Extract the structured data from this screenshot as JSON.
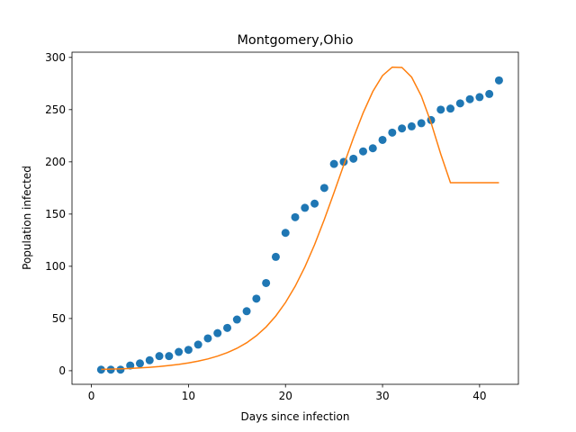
{
  "chart_data": {
    "type": "scatter",
    "title": "Montgomery,Ohio",
    "xlabel": "Days since infection",
    "ylabel": "Population infected",
    "xlim": [
      -2,
      44
    ],
    "ylim": [
      -13,
      305
    ],
    "xticks": [
      0,
      10,
      20,
      30,
      40
    ],
    "yticks": [
      0,
      50,
      100,
      150,
      200,
      250,
      300
    ],
    "grid": false,
    "series": [
      {
        "kind": "points",
        "color": "#1f77b4",
        "x": [
          1,
          2,
          3,
          4,
          5,
          6,
          7,
          8,
          9,
          10,
          11,
          12,
          13,
          14,
          15,
          16,
          17,
          18,
          19,
          20,
          21,
          22,
          23,
          24,
          25,
          26,
          27,
          28,
          29,
          30,
          31,
          32,
          33,
          34,
          35,
          36,
          37,
          38,
          39,
          40,
          41,
          42
        ],
        "y": [
          1,
          1,
          1,
          5,
          7,
          10,
          14,
          14,
          18,
          20,
          25,
          31,
          36,
          41,
          49,
          57,
          69,
          84,
          109,
          132,
          147,
          156,
          160,
          175,
          198,
          200,
          203,
          210,
          213,
          221,
          228,
          232,
          234,
          237,
          240,
          250,
          251,
          256,
          260,
          262,
          265,
          278
        ]
      },
      {
        "kind": "line",
        "color": "#ff7f0e",
        "x": [
          1,
          2,
          3,
          4,
          5,
          6,
          7,
          8,
          9,
          10,
          11,
          12,
          13,
          14,
          15,
          16,
          17,
          18,
          19,
          20,
          21,
          22,
          23,
          24,
          25,
          26,
          27,
          28,
          29,
          30,
          31,
          32,
          33,
          34,
          35,
          36,
          37,
          38,
          39,
          40,
          41,
          42
        ],
        "y": [
          1.3,
          1.5,
          1.8,
          2.2,
          2.7,
          3.3,
          4.0,
          5.0,
          6.1,
          7.5,
          9.2,
          11.3,
          14.0,
          17.3,
          21.5,
          26.8,
          33.5,
          41.9,
          52.4,
          65.3,
          80.9,
          99.4,
          120.8,
          144.8,
          170.6,
          197.0,
          222.9,
          246.9,
          267.4,
          282.6,
          290.7,
          290.4,
          281.1,
          263.0,
          237.5,
          207.4,
          180.0,
          180.0,
          180.0,
          180.0,
          180.0,
          180.0
        ]
      }
    ]
  }
}
